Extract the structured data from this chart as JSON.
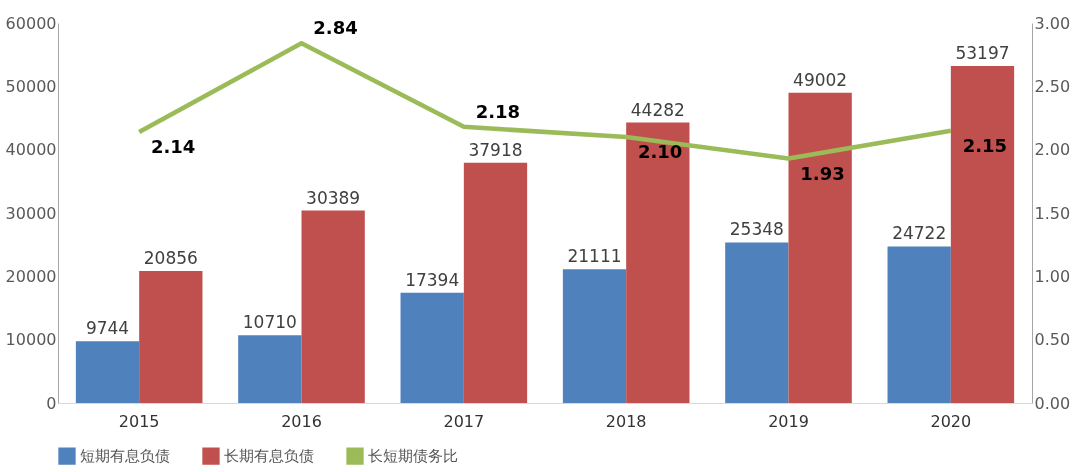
{
  "chart_data": {
    "type": "bar",
    "categories": [
      "2015",
      "2016",
      "2017",
      "2018",
      "2019",
      "2020"
    ],
    "series": [
      {
        "name": "短期有息负债",
        "color": "#4f81bd",
        "values": [
          9744,
          10710,
          17394,
          21111,
          25348,
          24722
        ]
      },
      {
        "name": "长期有息负债",
        "color": "#c0504d",
        "values": [
          20856,
          30389,
          37918,
          44282,
          49002,
          53197
        ]
      },
      {
        "name": "长短期债务比",
        "type": "line",
        "axis": "y2",
        "color": "#9bbb59",
        "values": [
          2.14,
          2.84,
          2.18,
          2.1,
          1.93,
          2.15
        ],
        "value_labels": [
          "2.14",
          "2.84",
          "2.18",
          "2.10",
          "1.93",
          "2.15"
        ]
      }
    ],
    "ylim": [
      0,
      60000
    ],
    "yticks": [
      0,
      10000,
      20000,
      30000,
      40000,
      50000,
      60000
    ],
    "y2lim": [
      0,
      3
    ],
    "y2ticks": [
      {
        "value": 0,
        "label": "0.00"
      },
      {
        "value": 0.5,
        "label": "0.50"
      },
      {
        "value": 1,
        "label": "1.00"
      },
      {
        "value": 1.5,
        "label": "1.50"
      },
      {
        "value": 2,
        "label": "2.00"
      },
      {
        "value": 2.5,
        "label": "2.50"
      },
      {
        "value": 3,
        "label": "3.00"
      }
    ],
    "data_labels": true,
    "legend": "bottom"
  }
}
